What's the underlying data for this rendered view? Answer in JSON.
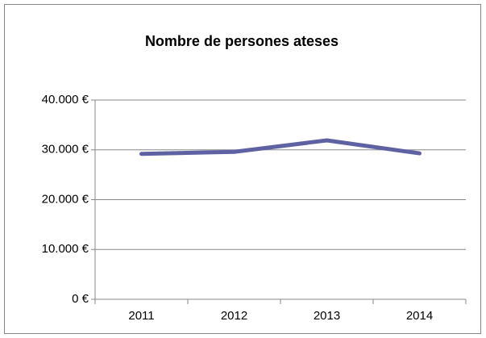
{
  "chart_data": {
    "type": "line",
    "title": "Nombre de persones ateses",
    "categories": [
      "2011",
      "2012",
      "2013",
      "2014"
    ],
    "series": [
      {
        "name": "Nombre de persones ateses",
        "color": "#5f62a2",
        "values": [
          29200,
          29600,
          31900,
          29300
        ]
      }
    ],
    "ylim": [
      0,
      40000
    ],
    "yticks": [
      {
        "value": 0,
        "label": "0 €"
      },
      {
        "value": 10000,
        "label": "10.000 €"
      },
      {
        "value": 20000,
        "label": "20.000 €"
      },
      {
        "value": 30000,
        "label": "30.000 €"
      },
      {
        "value": 40000,
        "label": "40.000 €"
      }
    ],
    "grid": true
  }
}
